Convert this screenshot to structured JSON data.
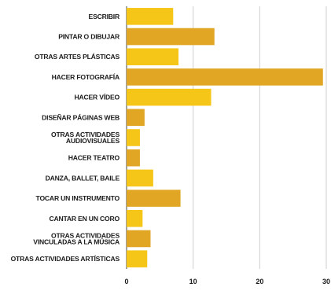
{
  "chart_data": {
    "type": "bar",
    "orientation": "horizontal",
    "categories": [
      [
        "ESCRIBIR"
      ],
      [
        "PINTAR O DIBUJAR"
      ],
      [
        "OTRAS ARTES PLÁSTICAS"
      ],
      [
        "HACER FOTOGRAFÍA"
      ],
      [
        "HACER VÍDEO"
      ],
      [
        "DISEÑAR PÁGINAS WEB"
      ],
      [
        "OTRAS ACTIVIDADES",
        "AUDIOVISUALES"
      ],
      [
        "HACER TEATRO"
      ],
      [
        "DANZA, BALLET, BAILE"
      ],
      [
        "TOCAR UN INSTRUMENTO"
      ],
      [
        "CANTAR EN UN CORO"
      ],
      [
        "OTRAS ACTIVIDADES",
        "VINCULADAS A LA MÚSICA"
      ],
      [
        "OTRAS ACTIVIDADES ARTÍSTICAS"
      ]
    ],
    "values": [
      7,
      13.2,
      7.8,
      29.5,
      12.7,
      2.7,
      2,
      2,
      4,
      8.1,
      2.4,
      3.6,
      3.1
    ],
    "colors": [
      "#f5c518",
      "#e0a624",
      "#f5c518",
      "#e0a624",
      "#f5c518",
      "#e0a624",
      "#f5c518",
      "#e0a624",
      "#f5c518",
      "#e0a624",
      "#f5c518",
      "#e0a624",
      "#f5c518"
    ],
    "xticks": [
      "0",
      "10",
      "20",
      "30"
    ],
    "xtick_values": [
      0,
      10,
      20,
      30
    ],
    "xlim": [
      0,
      30
    ],
    "grid": true,
    "title": "",
    "xlabel": "",
    "ylabel": ""
  }
}
